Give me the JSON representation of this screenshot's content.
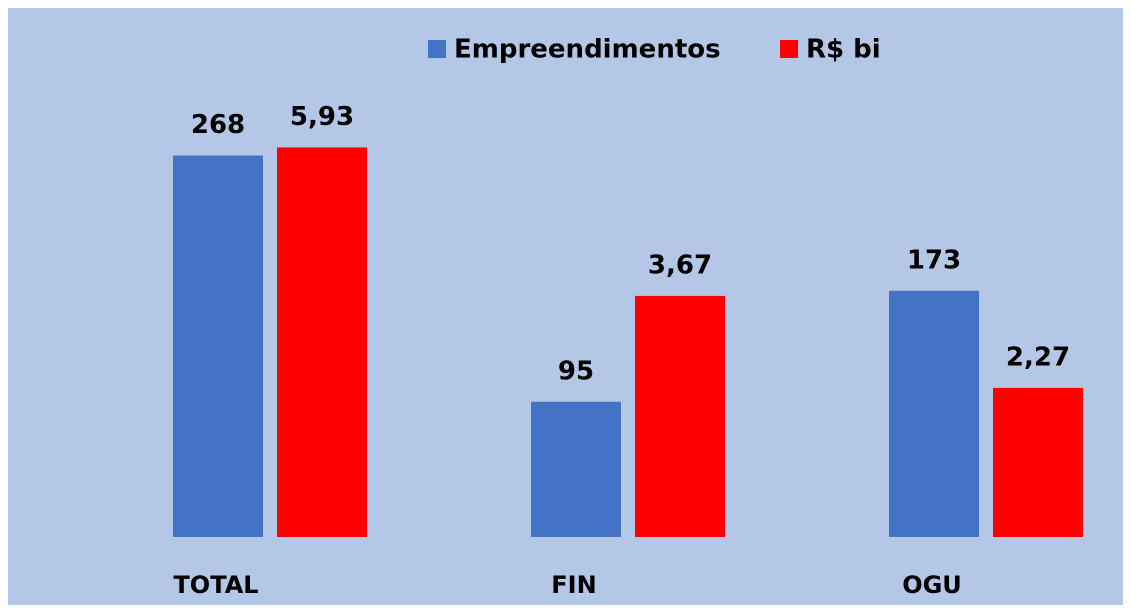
{
  "chart_data": {
    "type": "bar",
    "categories": [
      "TOTAL",
      "FIN",
      "OGU"
    ],
    "series": [
      {
        "name": "Empreendimentos",
        "color": "#4472c4",
        "values": [
          268,
          95,
          173
        ]
      },
      {
        "name": "R$ bi",
        "color": "#ff0000",
        "axis": "y2",
        "values": [
          5.93,
          3.67,
          2.27
        ],
        "value_labels": [
          "5,93",
          "3,67",
          "2,27"
        ]
      }
    ],
    "ylim": [
      0,
      300
    ],
    "y2lim": [
      0,
      6.5
    ],
    "legend": "top"
  }
}
